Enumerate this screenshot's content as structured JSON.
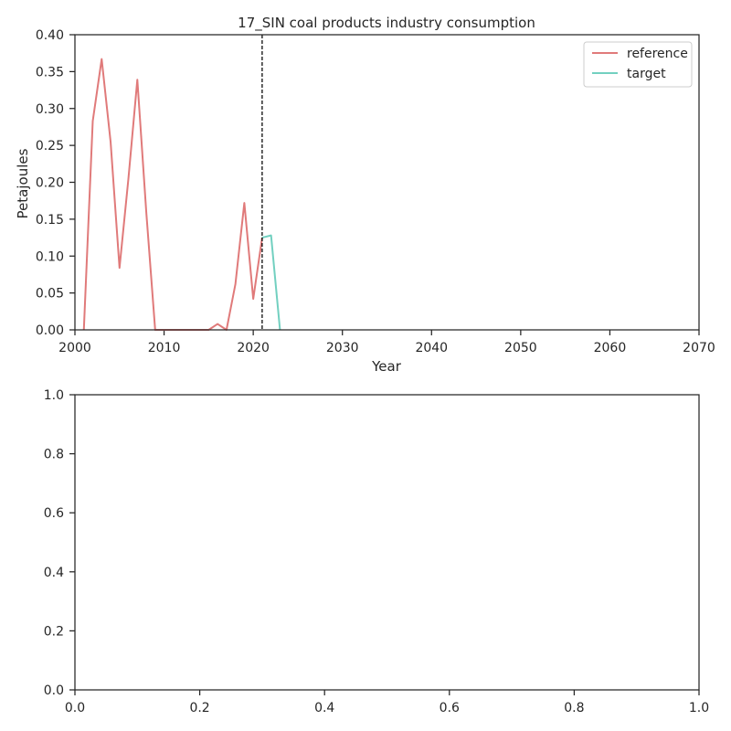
{
  "chart_data": [
    {
      "type": "line",
      "title": "17_SIN coal products industry consumption",
      "xlabel": "Year",
      "ylabel": "Petajoules",
      "xlim": [
        2000,
        2070
      ],
      "ylim": [
        0,
        0.4
      ],
      "xticks": [
        2000,
        2010,
        2020,
        2030,
        2040,
        2050,
        2060,
        2070
      ],
      "xtick_labels": [
        "2000",
        "2010",
        "2020",
        "2030",
        "2040",
        "2050",
        "2060",
        "2070"
      ],
      "yticks": [
        0,
        0.05,
        0.1,
        0.15,
        0.2,
        0.25,
        0.3,
        0.35,
        0.4
      ],
      "ytick_labels": [
        "0.00",
        "0.05",
        "0.10",
        "0.15",
        "0.20",
        "0.25",
        "0.30",
        "0.35",
        "0.40"
      ],
      "grid": false,
      "legend_position": "top-right",
      "vline": {
        "x": 2021,
        "style": "dashed",
        "color": "#000000"
      },
      "series": [
        {
          "name": "reference",
          "color": "#e07a7a",
          "x": [
            2001,
            2002,
            2003,
            2004,
            2005,
            2006,
            2007,
            2008,
            2009,
            2010,
            2011,
            2012,
            2013,
            2014,
            2015,
            2016,
            2017,
            2018,
            2019,
            2020,
            2021
          ],
          "y": [
            0.0,
            0.283,
            0.367,
            0.255,
            0.084,
            0.205,
            0.339,
            0.16,
            0.0,
            0.0,
            0.0,
            0.0,
            0.0,
            0.0,
            0.0,
            0.008,
            0.0,
            0.062,
            0.172,
            0.042,
            0.125
          ]
        },
        {
          "name": "target",
          "color": "#72d0c0",
          "x": [
            2021,
            2022,
            2023
          ],
          "y": [
            0.125,
            0.128,
            0.0
          ]
        }
      ]
    },
    {
      "type": "line",
      "title": "",
      "xlabel": "",
      "ylabel": "",
      "xlim": [
        0,
        1
      ],
      "ylim": [
        0,
        1
      ],
      "xticks": [
        0,
        0.2,
        0.4,
        0.6,
        0.8,
        1.0
      ],
      "xtick_labels": [
        "0.0",
        "0.2",
        "0.4",
        "0.6",
        "0.8",
        "1.0"
      ],
      "yticks": [
        0,
        0.2,
        0.4,
        0.6,
        0.8,
        1.0
      ],
      "ytick_labels": [
        "0.0",
        "0.2",
        "0.4",
        "0.6",
        "0.8",
        "1.0"
      ],
      "grid": false,
      "series": []
    }
  ]
}
